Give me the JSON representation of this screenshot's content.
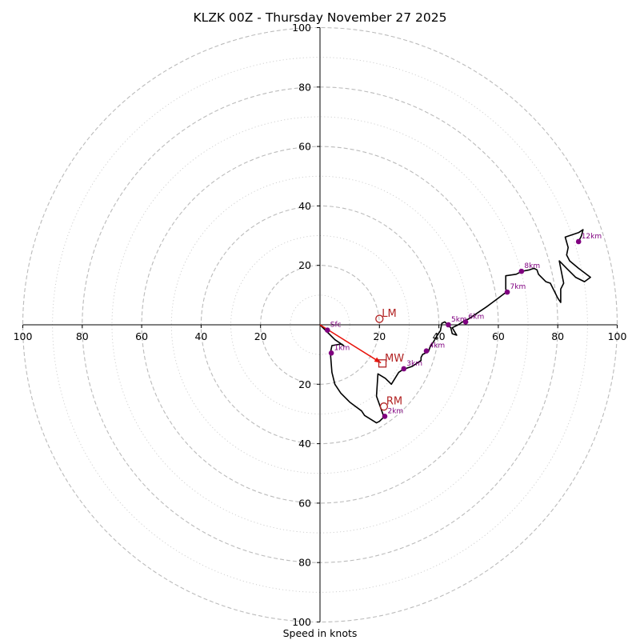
{
  "chart_data": {
    "type": "hodograph",
    "title": "KLZK 00Z - Thursday November 27 2025",
    "xlabel": "Speed in knots",
    "ylabel": "",
    "xlim": [
      -100,
      100
    ],
    "ylim": [
      -100,
      100
    ],
    "major_rings": [
      20,
      40,
      60,
      80,
      100
    ],
    "minor_rings": [
      10,
      30,
      50,
      70,
      90
    ],
    "x_tick_labels": [
      "100",
      "80",
      "60",
      "40",
      "20",
      "20",
      "40",
      "60",
      "80",
      "100"
    ],
    "x_tick_values": [
      -100,
      -80,
      -60,
      -40,
      -20,
      20,
      40,
      60,
      80,
      100
    ],
    "y_tick_labels": [
      "100",
      "80",
      "60",
      "40",
      "20",
      "20",
      "40",
      "60",
      "80",
      "100"
    ],
    "y_tick_values": [
      100,
      80,
      60,
      40,
      20,
      -20,
      -40,
      -60,
      -80,
      -100
    ],
    "colors": {
      "trace": "#000000",
      "height_marker": "#800080",
      "motion": "#b22222",
      "mean_wind_arrow": "#e8140c",
      "ring": "#bbbbbb"
    },
    "hodograph_trace": [
      [
        0,
        0
      ],
      [
        3,
        -3
      ],
      [
        5,
        -5
      ],
      [
        8,
        -7
      ],
      [
        7,
        -6.5
      ],
      [
        4,
        -7
      ],
      [
        3.5,
        -9.5
      ],
      [
        4,
        -16
      ],
      [
        5,
        -20
      ],
      [
        7,
        -23
      ],
      [
        10,
        -26
      ],
      [
        14,
        -29
      ],
      [
        15,
        -30.5
      ],
      [
        19,
        -33
      ],
      [
        20,
        -32.5
      ],
      [
        21.5,
        -31
      ],
      [
        19,
        -24
      ],
      [
        19.5,
        -16.5
      ],
      [
        22,
        -18
      ],
      [
        24,
        -20
      ],
      [
        26.5,
        -16
      ],
      [
        28,
        -15
      ],
      [
        31,
        -14
      ],
      [
        34,
        -12
      ],
      [
        34,
        -11
      ],
      [
        34.5,
        -10
      ],
      [
        36.5,
        -9
      ],
      [
        37,
        -7.5
      ],
      [
        38,
        -6
      ],
      [
        39.5,
        -3.5
      ],
      [
        40.5,
        -2
      ],
      [
        41,
        0.5
      ],
      [
        42,
        1
      ],
      [
        43,
        0
      ],
      [
        44,
        -1
      ],
      [
        44.5,
        -3
      ],
      [
        46,
        -3.5
      ],
      [
        44.5,
        -1
      ],
      [
        46.5,
        0
      ],
      [
        48,
        1
      ],
      [
        50,
        2
      ],
      [
        56,
        6
      ],
      [
        60,
        9
      ],
      [
        62,
        10.5
      ],
      [
        63,
        11
      ],
      [
        62.5,
        12
      ],
      [
        62.5,
        16.5
      ],
      [
        66,
        17
      ],
      [
        68,
        18
      ],
      [
        70.5,
        18.5
      ],
      [
        72,
        19
      ],
      [
        73,
        18.5
      ],
      [
        73.5,
        17
      ],
      [
        74.5,
        16
      ],
      [
        76,
        14.5
      ],
      [
        77.5,
        14
      ],
      [
        79,
        11
      ],
      [
        80,
        9
      ],
      [
        81,
        7.5
      ],
      [
        81,
        12
      ],
      [
        82,
        14
      ],
      [
        81,
        19
      ],
      [
        80.5,
        21.5
      ],
      [
        83,
        19
      ],
      [
        86,
        16
      ],
      [
        89,
        14.5
      ],
      [
        91,
        16
      ],
      [
        87,
        19
      ],
      [
        84,
        21.5
      ],
      [
        83,
        23.5
      ],
      [
        83.5,
        26
      ],
      [
        82.5,
        29.5
      ],
      [
        87,
        31
      ],
      [
        88.5,
        32
      ],
      [
        88,
        30
      ],
      [
        87,
        28
      ]
    ],
    "height_markers": [
      {
        "label": "Sfc",
        "u": 2.5,
        "v": -1.8
      },
      {
        "label": "1km",
        "u": 3.8,
        "v": -9.5
      },
      {
        "label": "2km",
        "u": 21.8,
        "v": -30.8
      },
      {
        "label": "3km",
        "u": 28.2,
        "v": -14.8
      },
      {
        "label": "4km",
        "u": 35.8,
        "v": -8.8
      },
      {
        "label": "5km",
        "u": 43.2,
        "v": 0
      },
      {
        "label": "6km",
        "u": 49,
        "v": 1
      },
      {
        "label": "7km",
        "u": 63,
        "v": 11
      },
      {
        "label": "8km",
        "u": 67.8,
        "v": 18
      },
      {
        "label": "12km",
        "u": 87,
        "v": 28
      }
    ],
    "storm_motion": [
      {
        "label": "LM",
        "u": 20,
        "v": 2,
        "marker": "circle"
      },
      {
        "label": "MW",
        "u": 21,
        "v": -13,
        "marker": "square"
      },
      {
        "label": "RM",
        "u": 21.5,
        "v": -27.5,
        "marker": "circle"
      }
    ],
    "mean_wind_arrow": {
      "from": [
        0,
        0
      ],
      "to": [
        20.5,
        -12.8
      ]
    }
  }
}
